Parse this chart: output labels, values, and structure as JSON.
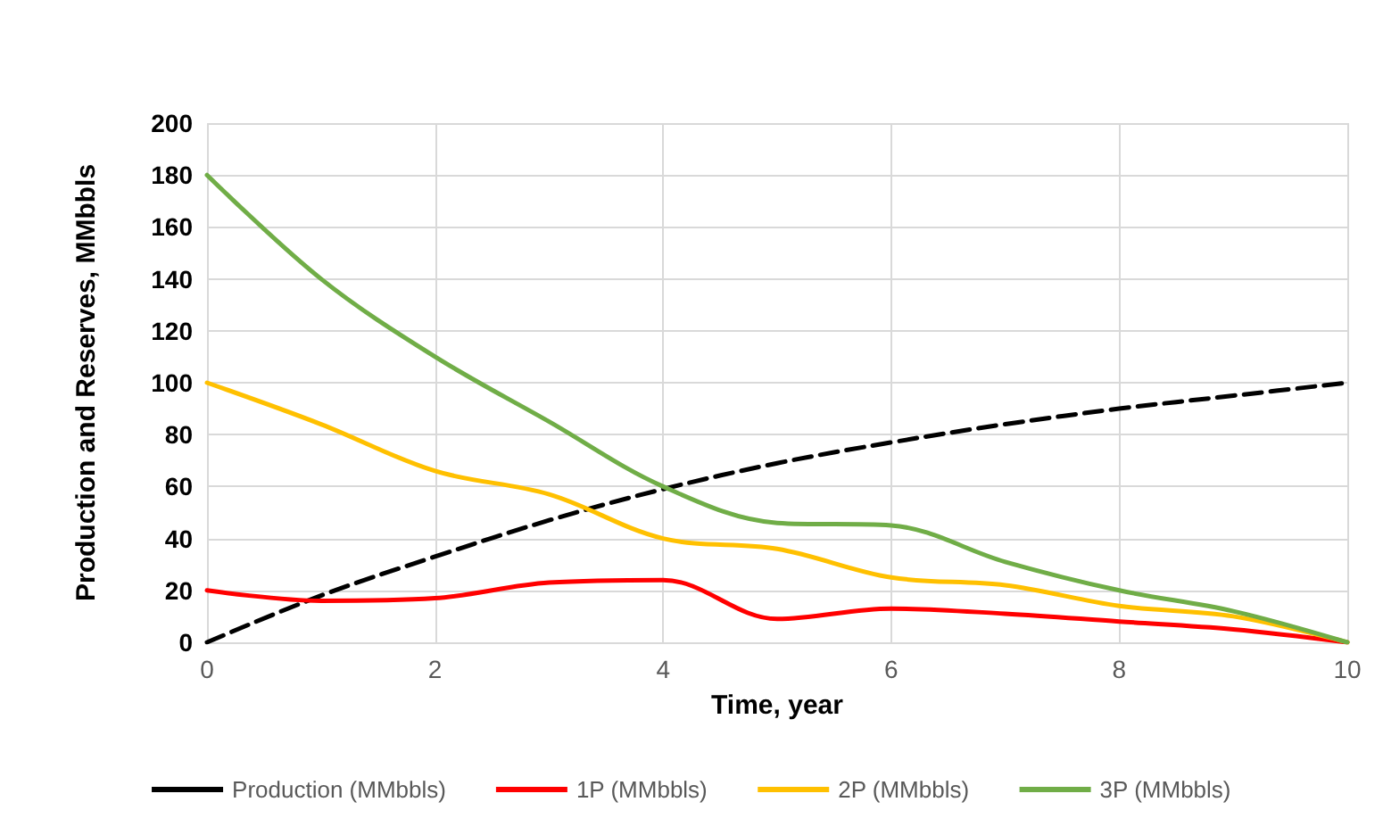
{
  "chart_data": {
    "type": "line",
    "xlabel": "Time, year",
    "ylabel": "Production and Reserves, MMbbls",
    "x": [
      0,
      1,
      2,
      3,
      4,
      5,
      6,
      7,
      8,
      9,
      10
    ],
    "xlim": [
      0,
      10
    ],
    "xticks": [
      0,
      2,
      4,
      6,
      8,
      10
    ],
    "ylim": [
      0,
      200
    ],
    "yticks": [
      0,
      20,
      40,
      60,
      80,
      100,
      120,
      140,
      160,
      180,
      200
    ],
    "grid": true,
    "legend": "bottom",
    "marker": "none",
    "series": [
      {
        "name": "Production (MMbbls)",
        "color": "#000000",
        "line_style": "dashed",
        "values": [
          0,
          18,
          33,
          47,
          59,
          69,
          77,
          84,
          90,
          95,
          100
        ]
      },
      {
        "name": "1P (MMbbls)",
        "color": "#ff0000",
        "values": [
          20,
          16,
          17,
          23,
          24,
          9,
          13,
          11,
          8,
          5,
          0
        ]
      },
      {
        "name": "2P (MMbbls)",
        "color": "#ffc000",
        "values": [
          100,
          84,
          66,
          57,
          40,
          36,
          25,
          22,
          14,
          10,
          0
        ]
      },
      {
        "name": "3P (MMbbls)",
        "color": "#70ad47",
        "values": [
          180,
          140,
          110,
          85,
          60,
          46,
          45,
          31,
          20,
          12,
          0
        ]
      }
    ]
  }
}
